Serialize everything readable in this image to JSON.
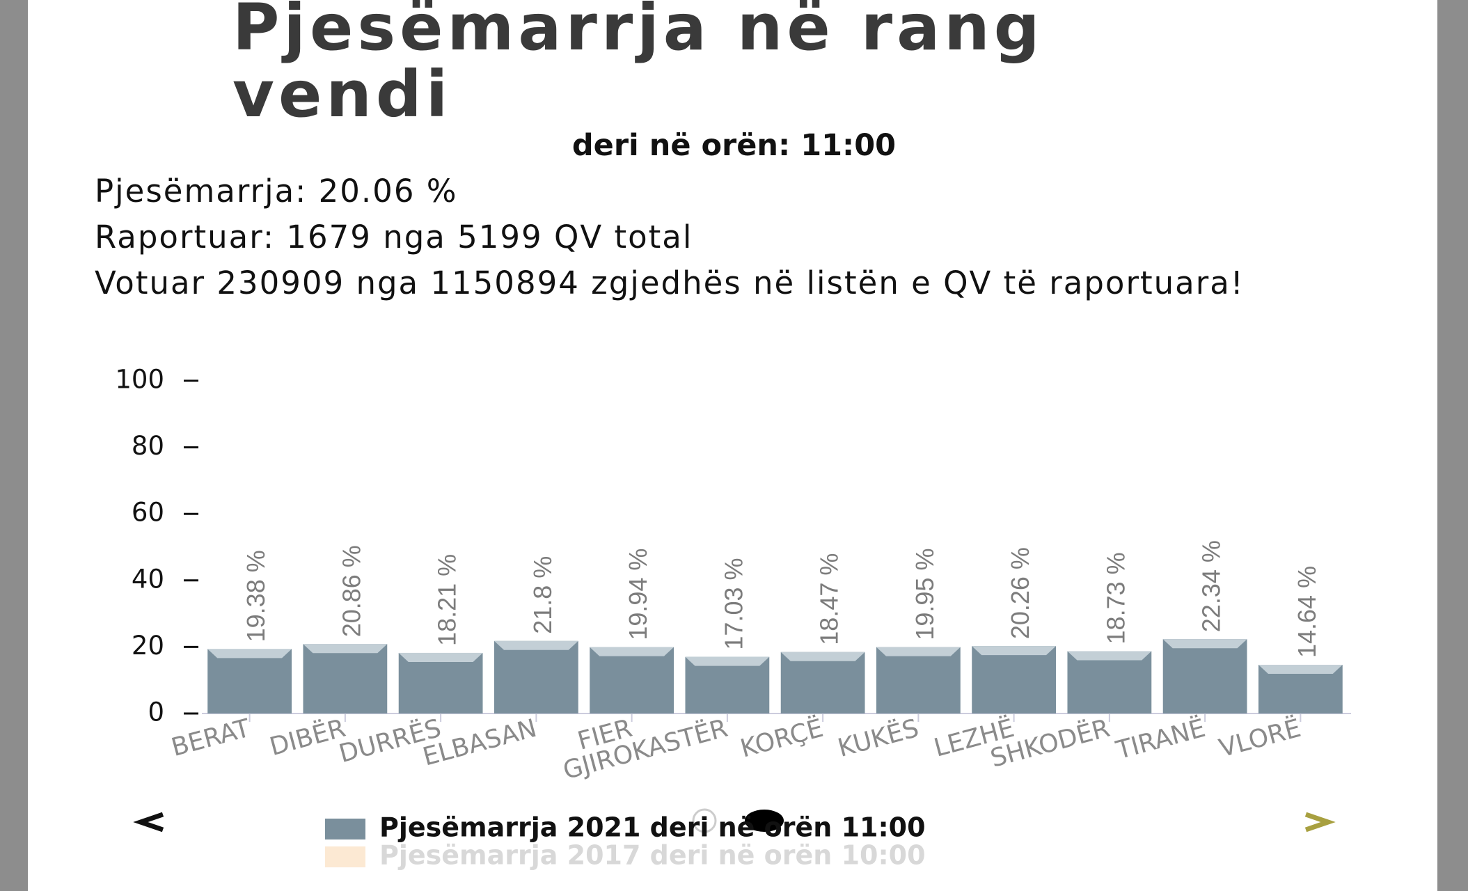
{
  "header": {
    "title": "Pjesëmarrja në rang vendi",
    "subtitle": "deri në orën: 11:00",
    "stats": [
      "Pjesëmarrja: 20.06 %",
      "Raportuar: 1679 nga 5199 QV total",
      "Votuar 230909 nga 1150894 zgjedhës në listën e QV të raportuara!"
    ]
  },
  "chart_data": {
    "type": "bar",
    "categories": [
      "BERAT",
      "DIBËR",
      "DURRËS",
      "ELBASAN",
      "FIER",
      "GJIROKASTËR",
      "KORÇË",
      "KUKËS",
      "LEZHË",
      "SHKODËR",
      "TIRANË",
      "VLORË"
    ],
    "series": [
      {
        "name": "Pjesëmarrja 2021 deri në orën 11:00",
        "color": "#7a8f9c",
        "values": [
          19.38,
          20.86,
          18.21,
          21.8,
          19.94,
          17.03,
          18.47,
          19.95,
          20.26,
          18.73,
          22.34,
          14.64
        ],
        "value_labels": [
          "19.38 %",
          "20.86 %",
          "18.21 %",
          "21.8 %",
          "19.94 %",
          "17.03 %",
          "18.47 %",
          "19.95 %",
          "20.26 %",
          "18.73 %",
          "22.34 %",
          "14.64 %"
        ]
      },
      {
        "name": "Pjesëmarrja 2017 deri në orën 10:00",
        "color": "#fce9d3",
        "values": [
          null,
          null,
          null,
          null,
          null,
          null,
          null,
          null,
          null,
          null,
          null,
          null
        ]
      }
    ],
    "ylim": [
      0,
      100
    ],
    "yticks": [
      0,
      20,
      40,
      60,
      80,
      100
    ]
  }
}
